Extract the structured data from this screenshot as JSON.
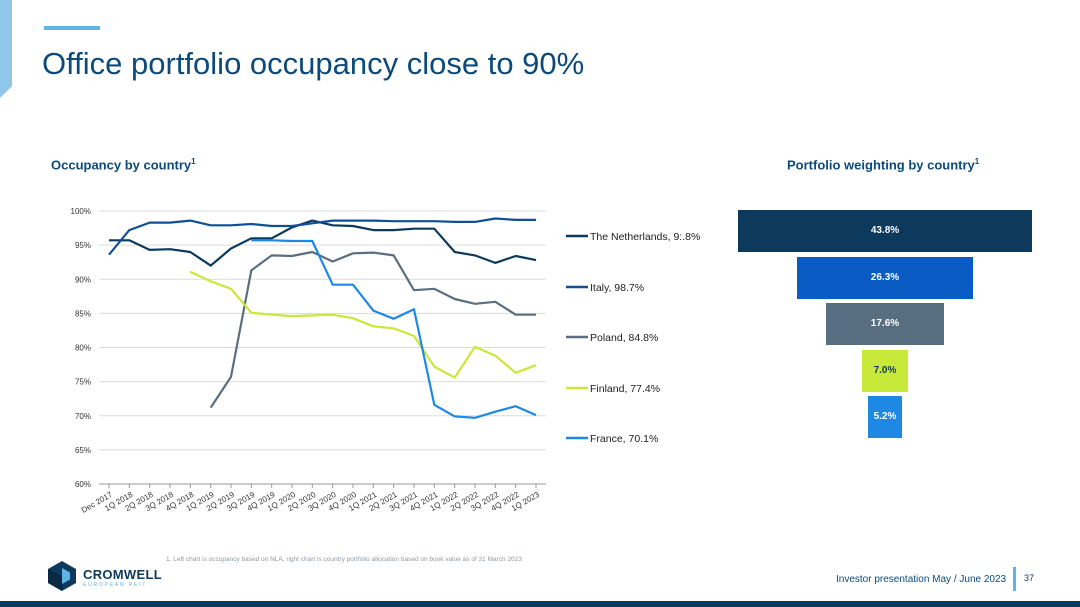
{
  "header": {
    "title": "Office portfolio occupancy close to 90%"
  },
  "left_subtitle": "Occupancy by country",
  "right_subtitle": "Portfolio weighting by country",
  "footnote_marker": "1",
  "footnote": "1.     Left chart is occupancy based on NLA, right chart is country portfolio allocation based on book value as of 31 March 2023",
  "footer": {
    "logo_text": "CROMWELL",
    "logo_sub": "EUROPEAN REIT",
    "presentation": "Investor presentation May / June 2023",
    "page_number": "37"
  },
  "chart_data": [
    {
      "type": "line",
      "title": "Occupancy by country",
      "categories": [
        "Dec 2017",
        "1Q 2018",
        "2Q 2018",
        "3Q 2018",
        "4Q 2018",
        "1Q 2019",
        "2Q 2019",
        "3Q 2019",
        "4Q 2019",
        "1Q 2020",
        "2Q 2020",
        "3Q 2020",
        "4Q 2020",
        "1Q 2021",
        "2Q 2021",
        "3Q 2021",
        "4Q 2021",
        "1Q 2022",
        "2Q 2022",
        "3Q 2022",
        "4Q 2022",
        "1Q 2023"
      ],
      "yticks": [
        "60%",
        "65%",
        "70%",
        "75%",
        "80%",
        "85%",
        "90%",
        "95%",
        "100%"
      ],
      "ylim": [
        60,
        100
      ],
      "grid": true,
      "legend_position": "right",
      "series": [
        {
          "name": "The Netherlands",
          "label": "The Netherlands, 9⁠:.8%",
          "color": "#0d3a5c",
          "values": [
            95.7,
            95.7,
            94.3,
            94.4,
            94.0,
            92.0,
            94.5,
            96.0,
            96.0,
            97.6,
            98.6,
            97.9,
            97.8,
            97.2,
            97.2,
            97.4,
            97.4,
            94.0,
            93.5,
            92.4,
            93.4,
            92.8
          ]
        },
        {
          "name": "Italy",
          "label": "Italy, 98.7%",
          "color": "#0f4f98",
          "values": [
            93.6,
            97.2,
            98.3,
            98.3,
            98.6,
            97.9,
            97.9,
            98.1,
            97.8,
            97.8,
            98.2,
            98.6,
            98.6,
            98.6,
            98.5,
            98.5,
            98.5,
            98.4,
            98.4,
            98.9,
            98.7,
            98.7
          ]
        },
        {
          "name": "Poland",
          "label": "Poland, 84.8%",
          "color": "#5b6e80",
          "values": [
            null,
            null,
            null,
            null,
            null,
            71.2,
            75.7,
            91.3,
            93.5,
            93.4,
            94.0,
            92.6,
            93.8,
            93.9,
            93.5,
            88.4,
            88.6,
            87.1,
            86.4,
            86.7,
            84.8,
            84.8
          ]
        },
        {
          "name": "Finland",
          "label": "Finland, 77.4%",
          "color": "#c8e83a",
          "values": [
            null,
            null,
            null,
            null,
            91.1,
            89.7,
            88.6,
            85.1,
            84.8,
            84.6,
            84.7,
            84.8,
            84.3,
            83.1,
            82.8,
            81.7,
            77.2,
            75.6,
            80.1,
            78.8,
            76.3,
            77.4
          ]
        },
        {
          "name": "France",
          "label": "France, 70.1%",
          "color": "#1e88e5",
          "values": [
            null,
            null,
            null,
            null,
            null,
            null,
            null,
            95.7,
            95.7,
            95.6,
            95.6,
            89.2,
            89.2,
            85.4,
            84.2,
            85.6,
            71.6,
            69.9,
            69.7,
            70.6,
            71.4,
            70.1
          ]
        }
      ]
    },
    {
      "type": "bar",
      "title": "Portfolio weighting by country",
      "categories": [
        "The Netherlands",
        "Italy",
        "Poland",
        "Finland",
        "France"
      ],
      "values": [
        43.8,
        26.3,
        17.6,
        7.0,
        5.2
      ],
      "labels": [
        "43.8%",
        "26.3%",
        "17.6%",
        "7.0%",
        "5.2%"
      ],
      "colors": [
        "#0d3a5c",
        "#0a5cc4",
        "#566e80",
        "#c8e83a",
        "#1e88e5"
      ],
      "text_colors": [
        "#ffffff",
        "#ffffff",
        "#ffffff",
        "#0d3a5c",
        "#ffffff"
      ]
    }
  ]
}
